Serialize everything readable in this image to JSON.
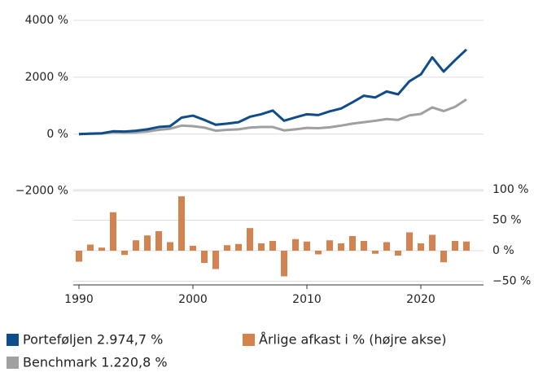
{
  "chart_data": {
    "type": "combo",
    "x": [
      1990,
      1991,
      1992,
      1993,
      1994,
      1995,
      1996,
      1997,
      1998,
      1999,
      2000,
      2001,
      2002,
      2003,
      2004,
      2005,
      2006,
      2007,
      2008,
      2009,
      2010,
      2011,
      2012,
      2013,
      2014,
      2015,
      2016,
      2017,
      2018,
      2019,
      2020,
      2021,
      2022,
      2023,
      2024
    ],
    "series": [
      {
        "name": "Porteføljen 2.974,7 %",
        "type": "line",
        "color": "#0f4c8a",
        "values": [
          0,
          20,
          30,
          100,
          90,
          120,
          170,
          250,
          280,
          580,
          650,
          500,
          330,
          370,
          420,
          610,
          700,
          830,
          470,
          590,
          700,
          670,
          800,
          900,
          1120,
          1350,
          1290,
          1500,
          1400,
          1860,
          2100,
          2700,
          2200,
          2600,
          2974.7
        ]
      },
      {
        "name": "Benchmark 1.220,8 %",
        "type": "line",
        "color": "#a0a0a0",
        "values": [
          0,
          10,
          20,
          60,
          50,
          60,
          90,
          150,
          190,
          300,
          280,
          230,
          120,
          150,
          170,
          230,
          250,
          250,
          130,
          170,
          220,
          210,
          240,
          300,
          370,
          420,
          470,
          530,
          500,
          660,
          710,
          940,
          810,
          960,
          1220.8
        ]
      },
      {
        "name": "Årlige afkast i % (højre akse)",
        "type": "bar",
        "axis": "y2",
        "color": "#d38350",
        "values": [
          -18,
          10,
          5,
          63,
          -7,
          17,
          25,
          32,
          14,
          89,
          8,
          -20,
          -30,
          9,
          11,
          37,
          12,
          16,
          -42,
          19,
          15,
          -6,
          17,
          12,
          24,
          16,
          -5,
          14,
          -8,
          30,
          12,
          26,
          -19,
          16,
          15
        ]
      }
    ],
    "xlim": [
      1990,
      2025.5
    ],
    "xticks": [
      1990,
      2000,
      2010,
      2020
    ],
    "ylim": [
      -5300,
      4000
    ],
    "yticks": [
      {
        "value": -2000,
        "label": "−2000 %"
      },
      {
        "value": 0,
        "label": "0 %"
      },
      {
        "value": 2000,
        "label": "2000 %"
      },
      {
        "value": 4000,
        "label": "4000 %"
      }
    ],
    "y2lim": [
      -56,
      377
    ],
    "y2ticks": [
      {
        "value": -50,
        "label": "−50 %"
      },
      {
        "value": 0,
        "label": "0 %"
      },
      {
        "value": 50,
        "label": "50 %"
      },
      {
        "value": 100,
        "label": "100 %"
      }
    ],
    "grid": true
  }
}
